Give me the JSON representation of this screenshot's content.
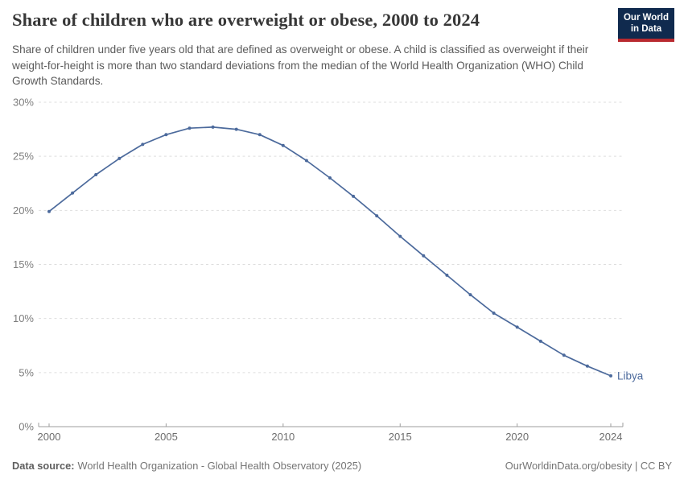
{
  "header": {
    "title": "Share of children who are overweight or obese, 2000 to 2024",
    "logo": {
      "line1": "Our World",
      "line2": "in Data",
      "bg_color": "#102a4e",
      "accent_color": "#b8292f"
    }
  },
  "subtitle": "Share of children under five years old that are defined as overweight or obese. A child is classified as overweight if their weight-for-height is more than two standard deviations from the median of the World Health Organization (WHO) Child Growth Standards.",
  "chart_data": {
    "type": "line",
    "title": "Share of children who are overweight or obese, 2000 to 2024",
    "x": [
      2000,
      2001,
      2002,
      2003,
      2004,
      2005,
      2006,
      2007,
      2008,
      2009,
      2010,
      2011,
      2012,
      2013,
      2014,
      2015,
      2016,
      2017,
      2018,
      2019,
      2020,
      2021,
      2022,
      2023,
      2024
    ],
    "series": [
      {
        "name": "Libya",
        "color": "#4c6a9c",
        "values": [
          19.9,
          21.6,
          23.3,
          24.8,
          26.1,
          27.0,
          27.6,
          27.7,
          27.5,
          27.0,
          26.0,
          24.6,
          23.0,
          21.3,
          19.5,
          17.6,
          15.8,
          14.0,
          12.2,
          10.5,
          9.2,
          7.9,
          6.6,
          5.6,
          4.7
        ]
      }
    ],
    "xlabel": "",
    "ylabel": "",
    "ylim": [
      0,
      30
    ],
    "yticks": [
      0,
      5,
      10,
      15,
      20,
      25,
      30
    ],
    "ytick_suffix": "%",
    "xticks": [
      2000,
      2005,
      2010,
      2015,
      2020,
      2024
    ],
    "grid": "horizontal-dashed",
    "legend": "end-of-line-label",
    "colors": {
      "gridline": "#dedede",
      "axis": "#9e9e9e",
      "ytick_label": "#7d7d7d",
      "xtick_label": "#6d6d6d"
    }
  },
  "footer": {
    "datasource_label": "Data source:",
    "datasource_text": "World Health Organization - Global Health Observatory (2025)",
    "rights_text": "OurWorldinData.org/obesity | CC BY"
  }
}
